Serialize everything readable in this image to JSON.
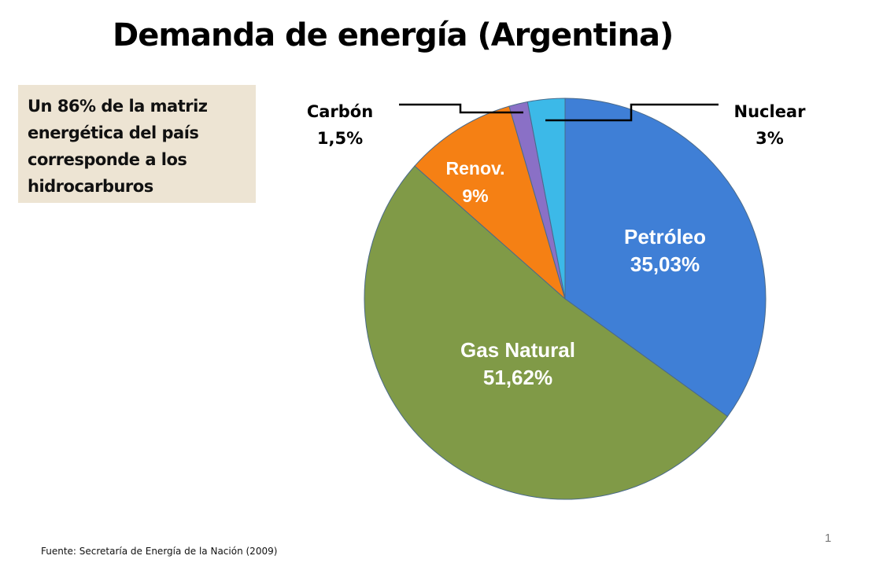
{
  "title": "Demanda de energía (Argentina)",
  "callout": "Un 86% de la matriz energética del país corresponde a los hidrocarburos",
  "source": "Fuente: Secretaría de Energía de la Nación (2009)",
  "page_number": "1",
  "chart_data": {
    "type": "pie",
    "start": "top, clockwise",
    "slices": [
      {
        "name": "Petróleo",
        "value": 35.03,
        "label": "35,03%",
        "color": "#3f7fd6",
        "label_color": "#ffffff"
      },
      {
        "name": "Gas Natural",
        "value": 51.62,
        "label": "51,62%",
        "color": "#809a47",
        "label_color": "#ffffff"
      },
      {
        "name": "Renov.",
        "value": 9,
        "label": "9%",
        "color": "#f58014",
        "label_color": "#ffffff"
      },
      {
        "name": "Carbón",
        "value": 1.5,
        "label": "1,5%",
        "color": "#8a70c6",
        "label_color": "#000000"
      },
      {
        "name": "Nuclear",
        "value": 3,
        "label": "3%",
        "color": "#3cb9e8",
        "label_color": "#000000"
      }
    ]
  }
}
